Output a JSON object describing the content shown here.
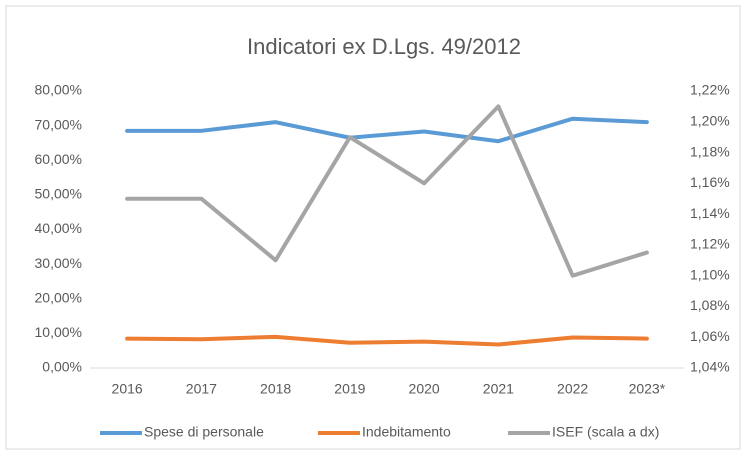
{
  "chart_data": {
    "type": "line",
    "title": "Indicatori ex D.Lgs. 49/2012",
    "categories": [
      "2016",
      "2017",
      "2018",
      "2019",
      "2020",
      "2021",
      "2022",
      "2023*"
    ],
    "series": [
      {
        "name": "Spese di personale",
        "color": "#5b9bd5",
        "values": [
          68.5,
          68.5,
          71,
          66.5,
          68.3,
          65.5,
          72,
          71
        ]
      },
      {
        "name": "Indebitamento",
        "color": "#ed7d31",
        "values": [
          8.5,
          8.3,
          9,
          7.3,
          7.6,
          6.8,
          8.8,
          8.5
        ]
      },
      {
        "name": "ISEF (scala a dx)",
        "color": "#a5a5a5",
        "axis": "y2",
        "values": [
          1.15,
          1.15,
          1.11,
          1.19,
          1.16,
          1.21,
          1.1,
          1.115
        ]
      }
    ],
    "ylim": [
      0,
      80
    ],
    "yticks": [
      {
        "value": 0,
        "label": "0,00%"
      },
      {
        "value": 10,
        "label": "10,00%"
      },
      {
        "value": 20,
        "label": "20,00%"
      },
      {
        "value": 30,
        "label": "30,00%"
      },
      {
        "value": 40,
        "label": "40,00%"
      },
      {
        "value": 50,
        "label": "50,00%"
      },
      {
        "value": 60,
        "label": "60,00%"
      },
      {
        "value": 70,
        "label": "70,00%"
      },
      {
        "value": 80,
        "label": "80,00%"
      }
    ],
    "y2lim": [
      1.04,
      1.22
    ],
    "y2ticks": [
      {
        "value": 1.04,
        "label": "1,04%"
      },
      {
        "value": 1.06,
        "label": "1,06%"
      },
      {
        "value": 1.08,
        "label": "1,08%"
      },
      {
        "value": 1.1,
        "label": "1,10%"
      },
      {
        "value": 1.12,
        "label": "1,12%"
      },
      {
        "value": 1.14,
        "label": "1,14%"
      },
      {
        "value": 1.16,
        "label": "1,16%"
      },
      {
        "value": 1.18,
        "label": "1,18%"
      },
      {
        "value": 1.2,
        "label": "1,20%"
      },
      {
        "value": 1.22,
        "label": "1,22%"
      }
    ],
    "legend": "bottom"
  }
}
